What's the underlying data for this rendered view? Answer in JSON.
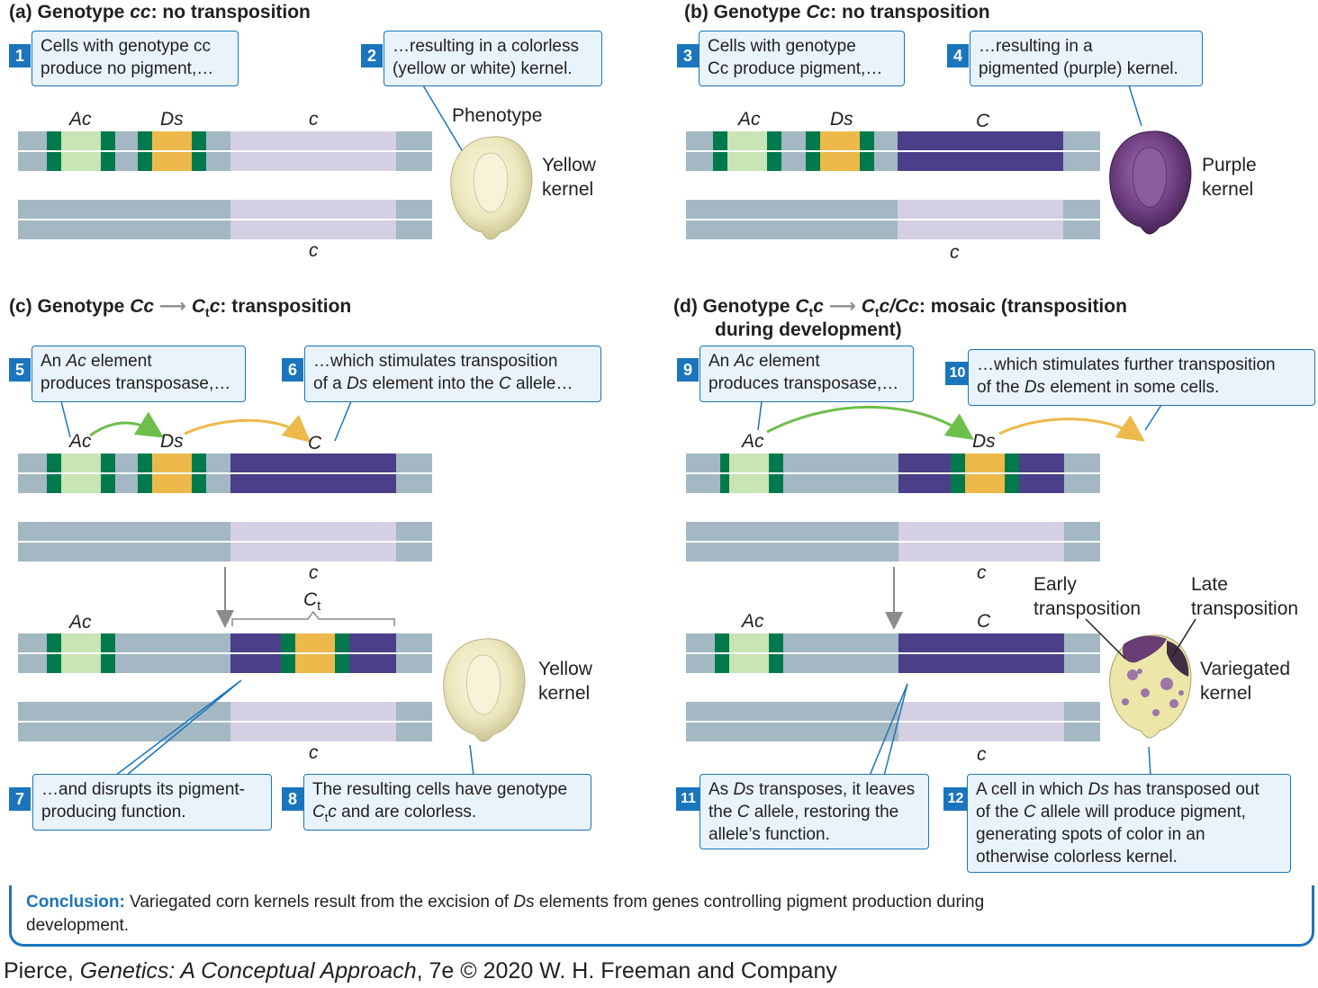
{
  "panels": {
    "a": {
      "tag": "(a)",
      "pre": "Genotype ",
      "geno": "cc",
      "post": ": no transposition"
    },
    "b": {
      "tag": "(b)",
      "pre": "Genotype ",
      "geno": "Cc",
      "post": ": no transposition"
    },
    "c": {
      "tag": "(c)",
      "pre": "Genotype ",
      "geno1": "Cc",
      "geno2_base": "C",
      "geno2_sub": "t",
      "geno2_tail": "c",
      "post": ": transposition"
    },
    "d": {
      "tag": "(d)",
      "pre": "Genotype ",
      "g1_base": "C",
      "g1_sub": "t",
      "g1_tail": "c",
      "g2_base": "C",
      "g2_sub": "t",
      "g2_tail": "c/Cc",
      "post": ": mosaic (transposition",
      "line2": "during development)"
    }
  },
  "steps": {
    "s1": {
      "n": "1",
      "l1": "Cells with genotype cc",
      "l2": "produce no pigment,…"
    },
    "s2": {
      "n": "2",
      "l1": "…resulting in a colorless",
      "l2": "(yellow or white) kernel."
    },
    "s3": {
      "n": "3",
      "l1": "Cells with genotype",
      "l2": "Cc produce pigment,…"
    },
    "s4": {
      "n": "4",
      "l1": "…resulting in a",
      "l2": "pigmented (purple) kernel."
    },
    "s5": {
      "n": "5",
      "l1a": "An ",
      "l1b": "Ac",
      "l1c": " element",
      "l2": "produces transposase,…"
    },
    "s6": {
      "n": "6",
      "l1": "…which stimulates transposition",
      "l2a": "of a ",
      "l2b": "Ds",
      "l2c": " element into the ",
      "l2d": "C",
      "l2e": " allele…"
    },
    "s7": {
      "n": "7",
      "l1": "…and disrupts its pigment-",
      "l2": "producing function."
    },
    "s8": {
      "n": "8",
      "l1": "The resulting cells have genotype",
      "l2a": "C",
      "l2b": "t",
      "l2c": "c",
      "l2d": " and are colorless."
    },
    "s9": {
      "n": "9",
      "l1a": "An ",
      "l1b": "Ac",
      "l1c": " element",
      "l2": "produces transposase,…"
    },
    "s10": {
      "n": "10",
      "l1": "…which stimulates further transposition",
      "l2a": "of the ",
      "l2b": "Ds",
      "l2c": " element in some cells."
    },
    "s11": {
      "n": "11",
      "l1a": "As ",
      "l1b": "Ds",
      "l1c": " transposes, it leaves",
      "l2a": "the ",
      "l2b": "C",
      "l2c": " allele, restoring the",
      "l3": "allele’s function."
    },
    "s12": {
      "n": "12",
      "l1a": "A cell in which ",
      "l1b": "Ds",
      "l1c": " has transposed out",
      "l2a": "of the ",
      "l2b": "C",
      "l2c": " allele will produce pigment,",
      "l3": "generating spots of color in an",
      "l4": "otherwise colorless kernel."
    }
  },
  "labels": {
    "ac": "Ac",
    "ds": "Ds",
    "c_lower": "c",
    "c_upper": "C",
    "ct_base": "C",
    "ct_sub": "t",
    "phenotype": "Phenotype",
    "yellow1": "Yellow",
    "kernel": "kernel",
    "purple": "Purple",
    "variegated": "Variegated",
    "early1": "Early",
    "early2": "transposition",
    "late1": "Late",
    "late2": "transposition"
  },
  "conclusion": {
    "head": "Conclusion:",
    "t1": " Variegated corn kernels result from the excision of ",
    "t2": "Ds",
    "t3": " elements from genes controlling pigment production during",
    "t4": "development."
  },
  "credit": {
    "a": "Pierce, ",
    "b": "Genetics: A Conceptual Approach",
    "c": ", 7e © 2020 W. H. Freeman and Company"
  },
  "colors": {
    "chromosome": "#a3b8c2",
    "ac_element": "#c9e4b5",
    "ds_element": "#ecb94a",
    "insert_end": "#007a4d",
    "c_allele_colorless": "#d4cfe2",
    "c_allele_pigmented": "#4b3f8a",
    "callout_fill": "#e8f3fb",
    "accent_blue": "#1b75bc",
    "green_arrow": "#6dbf4a",
    "orange_arrow": "#ecb94a"
  }
}
